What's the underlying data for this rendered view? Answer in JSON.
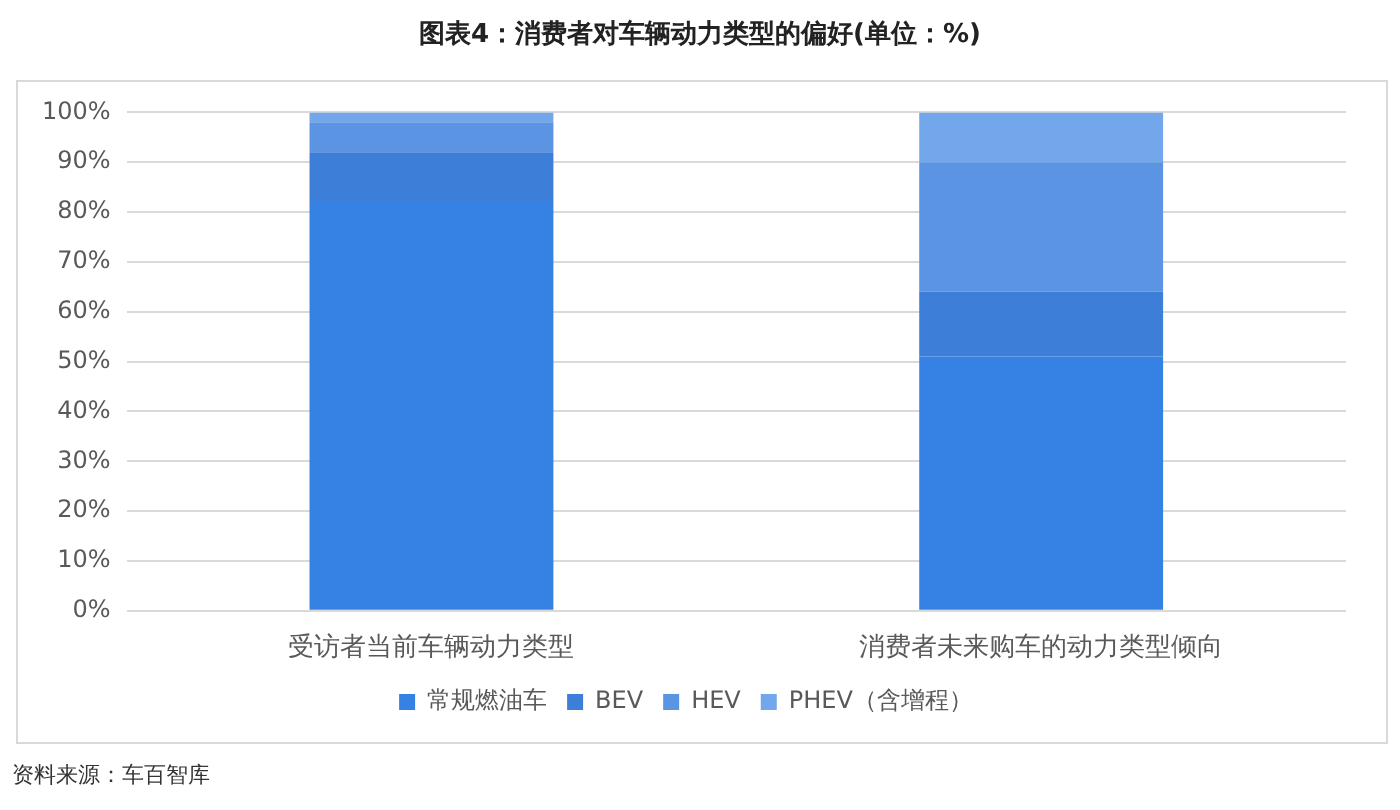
{
  "chart_data": {
    "type": "bar",
    "title": "图表4：消费者对车辆动力类型的偏好(单位：%)",
    "categories": [
      "受访者当前车辆动力类型",
      "消费者未来购车的动力类型倾向"
    ],
    "series": [
      {
        "name": "常规燃油车",
        "color": "#3581e4",
        "values": [
          82,
          51
        ]
      },
      {
        "name": "BEV",
        "color": "#3d7fd8",
        "values": [
          10,
          13
        ]
      },
      {
        "name": "HEV",
        "color": "#5a94e2",
        "values": [
          6,
          26
        ]
      },
      {
        "name": "PHEV（含增程）",
        "color": "#73a7eb",
        "values": [
          2,
          10
        ]
      }
    ],
    "stacked": true,
    "ylim": [
      0,
      100
    ],
    "yticks": [
      {
        "value": 0,
        "label": "0%"
      },
      {
        "value": 10,
        "label": "10%"
      },
      {
        "value": 20,
        "label": "20%"
      },
      {
        "value": 30,
        "label": "30%"
      },
      {
        "value": 40,
        "label": "40%"
      },
      {
        "value": 50,
        "label": "50%"
      },
      {
        "value": 60,
        "label": "60%"
      },
      {
        "value": 70,
        "label": "70%"
      },
      {
        "value": 80,
        "label": "80%"
      },
      {
        "value": 90,
        "label": "90%"
      },
      {
        "value": 100,
        "label": "100%"
      }
    ],
    "grid": "y",
    "legend": "bottom",
    "annotations": [
      "资料来源：车百智库"
    ]
  }
}
